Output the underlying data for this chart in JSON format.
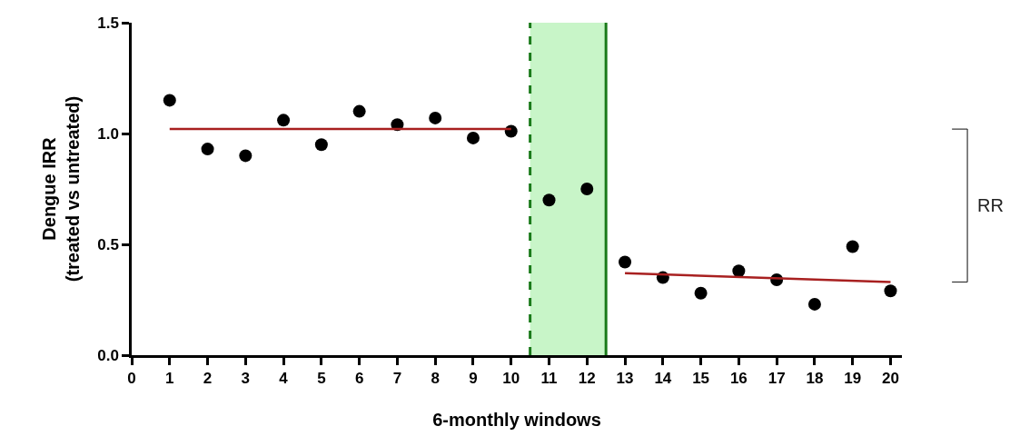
{
  "chart_data": {
    "type": "scatter",
    "xlabel": "6-monthly windows",
    "ylabel": "Dengue IRR\n(treated vs untreated)",
    "x": [
      1,
      2,
      3,
      4,
      5,
      6,
      7,
      8,
      9,
      10,
      11,
      12,
      13,
      14,
      15,
      16,
      17,
      18,
      19,
      20
    ],
    "series": [
      {
        "marker": "circle",
        "color": "#000000",
        "values": [
          1.15,
          0.93,
          0.9,
          1.06,
          0.95,
          1.1,
          1.04,
          1.07,
          0.98,
          1.01,
          0.7,
          0.75,
          0.42,
          0.35,
          0.28,
          0.38,
          0.34,
          0.23,
          0.49,
          0.29
        ]
      },
      {
        "type": "line",
        "color": "#a82020",
        "x": [
          1,
          10
        ],
        "values": [
          1.02,
          1.02
        ]
      },
      {
        "type": "line",
        "color": "#a82020",
        "x": [
          13,
          20
        ],
        "values": [
          0.37,
          0.33
        ]
      }
    ],
    "xlim": [
      0,
      20.3
    ],
    "xticks": [
      0,
      1,
      2,
      3,
      4,
      5,
      6,
      7,
      8,
      9,
      10,
      11,
      12,
      13,
      14,
      15,
      16,
      17,
      18,
      19,
      20
    ],
    "ylim": [
      0,
      1.5
    ],
    "yticks": [
      {
        "value": 0,
        "label": "0.0"
      },
      0.5,
      {
        "value": 1,
        "label": "1.0"
      },
      1.5
    ],
    "bands": [
      {
        "axis": "x",
        "from": 10.5,
        "to": 12.5,
        "color": "#c8f5c8"
      }
    ],
    "ref_lines": [
      {
        "axis": "x",
        "value": 10.5,
        "color": "#1a7a1a",
        "line_style": "dashed"
      },
      {
        "axis": "x",
        "value": 12.5,
        "color": "#1a7a1a",
        "line_style": "solid"
      }
    ],
    "annotations": [
      "RR"
    ],
    "grid": false
  }
}
